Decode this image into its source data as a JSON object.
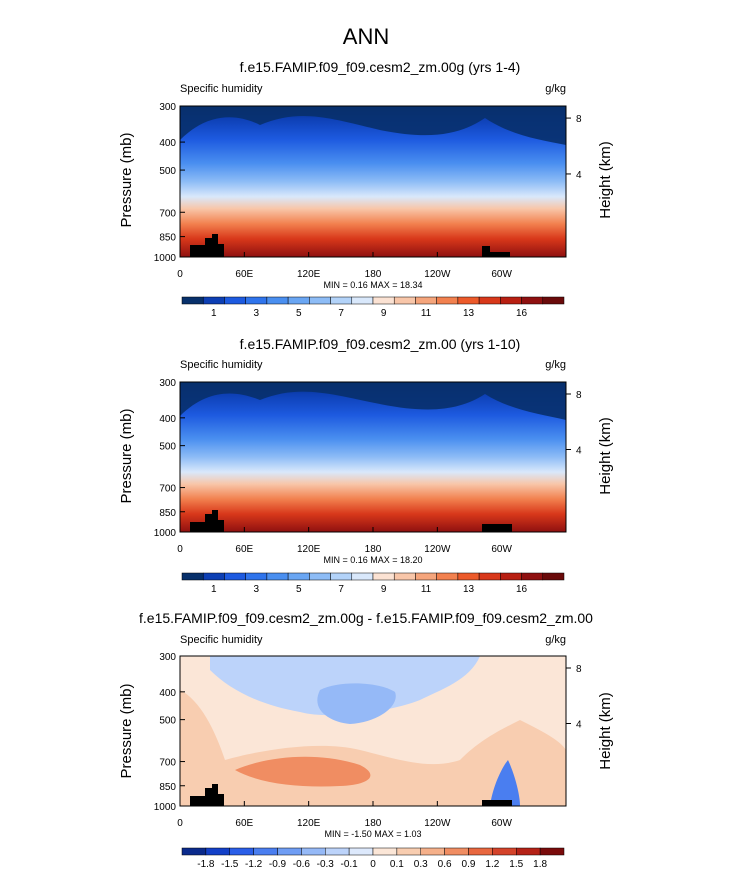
{
  "figure_title": "ANN",
  "chart_data": [
    {
      "type": "heatmap",
      "title": "f.e15.FAMIP.f09_f09.cesm2_zm.00g (yrs 1-4)",
      "variable": "Specific humidity",
      "units": "g/kg",
      "ylabel": "Pressure (mb)",
      "ylabel_right": "Height (km)",
      "x_ticks": [
        "0",
        "60E",
        "120E",
        "180",
        "120W",
        "60W"
      ],
      "y_ticks": [
        "300",
        "400",
        "500",
        "700",
        "850",
        "1000"
      ],
      "y_ticks_right": [
        "8",
        "4"
      ],
      "min": 0.16,
      "max": 18.34,
      "min_max_text": "MIN =  0.16  MAX =  18.34",
      "colorbar_labels": [
        "1",
        "3",
        "5",
        "7",
        "9",
        "11",
        "13",
        "16"
      ],
      "colorbar_colors": [
        "#08306b",
        "#0d3fb4",
        "#1d5ae0",
        "#2f74ec",
        "#4a8ff0",
        "#6aa6f3",
        "#8dbcf6",
        "#b3d3f9",
        "#d9e8fb",
        "#fbe2d3",
        "#f8c6a9",
        "#f5a57c",
        "#f2814f",
        "#ec5a2a",
        "#d8381a",
        "#b81f12",
        "#8f1010",
        "#6a0a0a"
      ]
    },
    {
      "type": "heatmap",
      "title": "f.e15.FAMIP.f09_f09.cesm2_zm.00 (yrs 1-10)",
      "variable": "Specific humidity",
      "units": "g/kg",
      "ylabel": "Pressure (mb)",
      "ylabel_right": "Height (km)",
      "x_ticks": [
        "0",
        "60E",
        "120E",
        "180",
        "120W",
        "60W"
      ],
      "y_ticks": [
        "300",
        "400",
        "500",
        "700",
        "850",
        "1000"
      ],
      "y_ticks_right": [
        "8",
        "4"
      ],
      "min": 0.16,
      "max": 18.2,
      "min_max_text": "MIN =  0.16  MAX =  18.20",
      "colorbar_labels": [
        "1",
        "3",
        "5",
        "7",
        "9",
        "11",
        "13",
        "16"
      ],
      "colorbar_colors": [
        "#08306b",
        "#0d3fb4",
        "#1d5ae0",
        "#2f74ec",
        "#4a8ff0",
        "#6aa6f3",
        "#8dbcf6",
        "#b3d3f9",
        "#d9e8fb",
        "#fbe2d3",
        "#f8c6a9",
        "#f5a57c",
        "#f2814f",
        "#ec5a2a",
        "#d8381a",
        "#b81f12",
        "#8f1010",
        "#6a0a0a"
      ]
    },
    {
      "type": "heatmap",
      "title": "f.e15.FAMIP.f09_f09.cesm2_zm.00g - f.e15.FAMIP.f09_f09.cesm2_zm.00",
      "variable": "Specific humidity",
      "units": "g/kg",
      "ylabel": "Pressure (mb)",
      "ylabel_right": "Height (km)",
      "x_ticks": [
        "0",
        "60E",
        "120E",
        "180",
        "120W",
        "60W"
      ],
      "y_ticks": [
        "300",
        "400",
        "500",
        "700",
        "850",
        "1000"
      ],
      "y_ticks_right": [
        "8",
        "4"
      ],
      "min": -1.5,
      "max": 1.03,
      "min_max_text": "MIN = -1.50  MAX =  1.03",
      "colorbar_labels": [
        "-1.8",
        "-1.5",
        "-1.2",
        "-0.9",
        "-0.6",
        "-0.3",
        "-0.1",
        "0",
        "0.1",
        "0.3",
        "0.6",
        "0.9",
        "1.2",
        "1.5",
        "1.8"
      ],
      "colorbar_colors": [
        "#0a2a8c",
        "#1340c8",
        "#2a5ee8",
        "#4a7ef0",
        "#6f9df4",
        "#95b9f7",
        "#bcd3fa",
        "#dde9fc",
        "#fbe6d7",
        "#f8cdb0",
        "#f5b08a",
        "#f08d62",
        "#e8673f",
        "#d4432a",
        "#b52217",
        "#7a0b0b"
      ]
    }
  ]
}
